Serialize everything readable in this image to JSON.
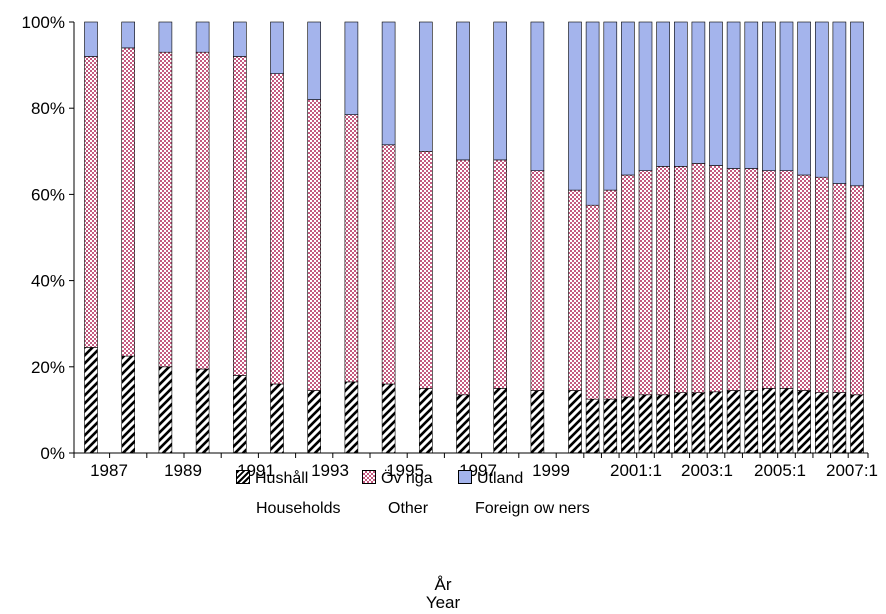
{
  "chart_data": {
    "type": "bar",
    "stacked": true,
    "percent_stacked": true,
    "categories": [
      "1987",
      "",
      "1989",
      "",
      "1991",
      "",
      "1993",
      "",
      "1995",
      "",
      "1997",
      "",
      "1999",
      "",
      "2001:1",
      "",
      "2003:1",
      "",
      "2005:1",
      "",
      "2007:1",
      "",
      "",
      "",
      "",
      "",
      "",
      "",
      "",
      ""
    ],
    "x_labels": [
      "1987",
      "1989",
      "1991",
      "1993",
      "1995",
      "1997",
      "1999",
      "2001:1",
      "2003:1",
      "2005:1",
      "2007:1"
    ],
    "y_ticks": [
      "0%",
      "20%",
      "40%",
      "60%",
      "80%",
      "100%"
    ],
    "ylim": [
      0,
      100
    ],
    "series": [
      {
        "name": "Hushåll",
        "name_en": "Households",
        "color": "#b0b0b0",
        "pattern": "diagonal-hatch",
        "values": [
          24.5,
          22.5,
          20,
          19.5,
          18,
          16,
          14.5,
          16.5,
          16,
          15,
          13.5,
          15,
          14.5,
          14.5,
          12.5,
          12.5,
          13,
          13.5,
          13.5,
          14,
          14,
          14.2,
          14.5,
          14.5,
          15,
          15,
          14.5,
          14,
          14,
          13.5
        ]
      },
      {
        "name": "Övriga",
        "name_en": "Other",
        "color": "#c8758f",
        "pattern": "checker",
        "values": [
          67.5,
          71.5,
          73,
          73.5,
          74,
          72,
          67.5,
          62,
          55.5,
          55,
          54.5,
          53,
          51,
          46.5,
          45,
          48.5,
          51.5,
          52,
          53,
          52.5,
          53.2,
          52.5,
          51.5,
          51.5,
          50.5,
          50.5,
          50,
          50,
          48.5,
          48.5
        ]
      },
      {
        "name": "Utland",
        "name_en": "Foreign ow ners",
        "color": "#a4b4ec",
        "values": [
          8,
          6,
          7,
          7,
          8,
          12,
          18,
          21.5,
          28.5,
          30,
          32,
          32,
          34.5,
          39,
          42.5,
          39,
          35.5,
          34.5,
          33.5,
          33.5,
          32.8,
          33.3,
          34,
          34,
          34.5,
          34.5,
          35.5,
          36,
          37.5,
          38
        ]
      }
    ],
    "x_title": "År",
    "x_title_en": "Year",
    "legend_position": "bottom",
    "grid": false
  },
  "legend": {
    "hushall": "Hushåll",
    "ovriga": "Öv riga",
    "utland": "Utland",
    "households": "Households",
    "other": "Other",
    "foreign": "Foreign ow ners"
  },
  "axis_title": {
    "line1": "År",
    "line2": "Year"
  }
}
